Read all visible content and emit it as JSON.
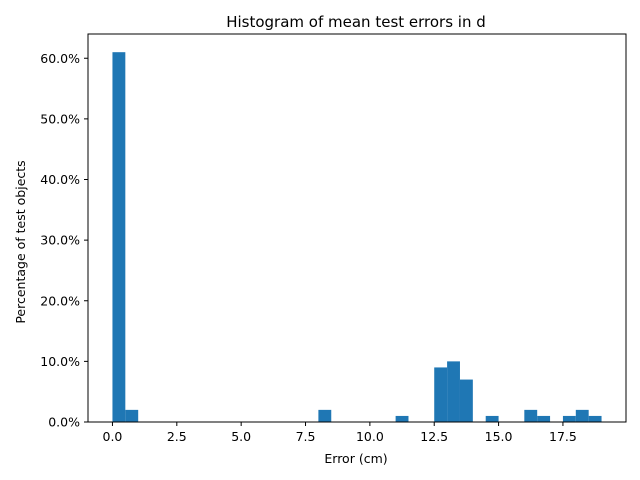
{
  "chart_data": {
    "type": "bar",
    "title": "Histogram of mean test errors in d",
    "xlabel": "Error (cm)",
    "ylabel": "Percentage of test objects",
    "xlim": [
      -0.95,
      19.95
    ],
    "ylim": [
      0,
      64
    ],
    "x_ticks": [
      0.0,
      2.5,
      5.0,
      7.5,
      10.0,
      12.5,
      15.0,
      17.5
    ],
    "x_tick_labels": [
      "0.0",
      "2.5",
      "5.0",
      "7.5",
      "10.0",
      "12.5",
      "15.0",
      "17.5"
    ],
    "y_ticks": [
      0,
      10,
      20,
      30,
      40,
      50,
      60
    ],
    "y_tick_labels": [
      "0.0%",
      "10.0%",
      "20.0%",
      "30.0%",
      "40.0%",
      "50.0%",
      "60.0%"
    ],
    "bin_width": 0.5,
    "bins": [
      {
        "start": 0.0,
        "value": 61
      },
      {
        "start": 0.5,
        "value": 2
      },
      {
        "start": 8.0,
        "value": 2
      },
      {
        "start": 11.0,
        "value": 1
      },
      {
        "start": 12.5,
        "value": 9
      },
      {
        "start": 13.0,
        "value": 10
      },
      {
        "start": 13.5,
        "value": 7
      },
      {
        "start": 14.5,
        "value": 1
      },
      {
        "start": 16.0,
        "value": 2
      },
      {
        "start": 16.5,
        "value": 1
      },
      {
        "start": 17.5,
        "value": 1
      },
      {
        "start": 18.0,
        "value": 2
      },
      {
        "start": 18.5,
        "value": 1
      }
    ],
    "bar_color": "#1f77b4",
    "grid": false,
    "legend": "none"
  }
}
